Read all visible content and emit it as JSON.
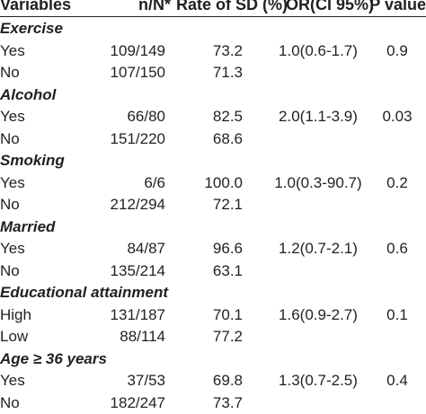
{
  "table": {
    "headers": {
      "variables": "Variables",
      "n_n": "n/N*",
      "rate": "Rate of SD (%)",
      "or_ci": "OR(CI 95%)",
      "p_value": "P value"
    },
    "groups": [
      {
        "title": "Exercise",
        "rows": [
          {
            "label": "Yes",
            "nn": "109/149",
            "rate": "73.2",
            "or": "1.0(0.6-1.7)",
            "p": "0.9"
          },
          {
            "label": "No",
            "nn": "107/150",
            "rate": "71.3",
            "or": "",
            "p": ""
          }
        ]
      },
      {
        "title": "Alcohol",
        "rows": [
          {
            "label": "Yes",
            "nn": "66/80",
            "rate": "82.5",
            "or": "2.0(1.1-3.9)",
            "p": "0.03"
          },
          {
            "label": "No",
            "nn": "151/220",
            "rate": "68.6",
            "or": "",
            "p": ""
          }
        ]
      },
      {
        "title": "Smoking",
        "rows": [
          {
            "label": "Yes",
            "nn": "6/6",
            "rate": "100.0",
            "or": "1.0(0.3-90.7)",
            "p": "0.2"
          },
          {
            "label": "No",
            "nn": "212/294",
            "rate": "72.1",
            "or": "",
            "p": ""
          }
        ]
      },
      {
        "title": "Married",
        "rows": [
          {
            "label": "Yes",
            "nn": "84/87",
            "rate": "96.6",
            "or": "1.2(0.7-2.1)",
            "p": "0.6"
          },
          {
            "label": "No",
            "nn": "135/214",
            "rate": "63.1",
            "or": "",
            "p": ""
          }
        ]
      },
      {
        "title": "Educational attainment",
        "rows": [
          {
            "label": "High",
            "nn": "131/187",
            "rate": "70.1",
            "or": "1.6(0.9-2.7)",
            "p": "0.1"
          },
          {
            "label": "Low",
            "nn": "88/114",
            "rate": "77.2",
            "or": "",
            "p": ""
          }
        ]
      },
      {
        "title": "Age ≥ 36 years",
        "rows": [
          {
            "label": "Yes",
            "nn": "37/53",
            "rate": "69.8",
            "or": "1.3(0.7-2.5)",
            "p": "0.4"
          },
          {
            "label": "No",
            "nn": "182/247",
            "rate": "73.7",
            "or": "",
            "p": ""
          }
        ]
      }
    ]
  }
}
